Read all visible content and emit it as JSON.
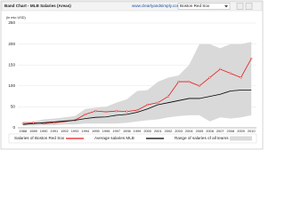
{
  "header": {
    "url": "www.clearlyandsimply.com",
    "dropdown": "Boston Red Sox"
  },
  "chart_data": {
    "type": "band-line",
    "title": "Band Chart - MLB Salaries (Areas)",
    "y_label": "(in mio USD)",
    "categories": [
      "1988",
      "1989",
      "1990",
      "1991",
      "1992",
      "1993",
      "1994",
      "1995",
      "1996",
      "1997",
      "1998",
      "1999",
      "2000",
      "2001",
      "2002",
      "2003",
      "2004",
      "2005",
      "2006",
      "2007",
      "2008",
      "2009",
      "2010"
    ],
    "ylim": [
      0,
      250
    ],
    "yticks": [
      0,
      50,
      100,
      150,
      200,
      250
    ],
    "grid": true,
    "legend": "bottom",
    "band": {
      "name": "Range of salaries of all teams",
      "color": "#d9d9d9",
      "low": [
        5,
        5,
        6,
        6,
        8,
        8,
        10,
        10,
        10,
        10,
        12,
        15,
        18,
        20,
        25,
        28,
        30,
        30,
        15,
        25,
        22,
        25,
        30
      ],
      "high": [
        15,
        15,
        20,
        22,
        25,
        28,
        45,
        48,
        50,
        60,
        68,
        88,
        90,
        110,
        120,
        125,
        150,
        200,
        200,
        190,
        200,
        200,
        205
      ]
    },
    "series": [
      {
        "name": "Salaries of Boston Red Sox",
        "color": "#e31a1c",
        "markers": true,
        "values": [
          10,
          12,
          10,
          12,
          15,
          18,
          32,
          40,
          38,
          40,
          39,
          42,
          55,
          60,
          75,
          110,
          110,
          100,
          120,
          140,
          130,
          120,
          165
        ]
      },
      {
        "name": "Average salaries MLB",
        "color": "#000000",
        "markers": false,
        "values": [
          8,
          10,
          12,
          14,
          16,
          18,
          22,
          25,
          26,
          30,
          32,
          37,
          45,
          55,
          60,
          65,
          70,
          70,
          75,
          80,
          88,
          90,
          90
        ]
      }
    ]
  }
}
